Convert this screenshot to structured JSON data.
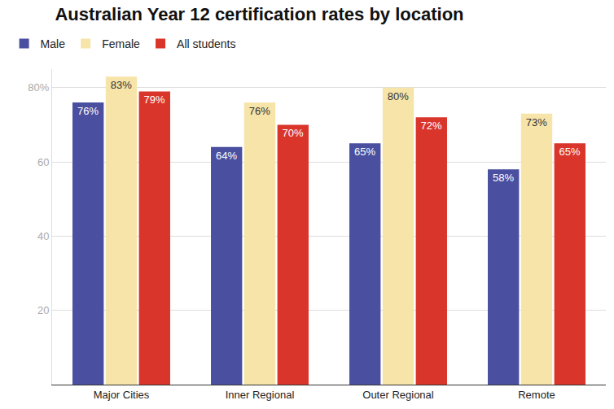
{
  "chart_data": {
    "type": "bar",
    "title": "Australian Year 12 certification rates by location",
    "categories": [
      "Major Cities",
      "Inner Regional",
      "Outer Regional",
      "Remote"
    ],
    "series": [
      {
        "name": "Male",
        "color": "#4a4f9f",
        "values": [
          76,
          64,
          65,
          58
        ],
        "value_labels": [
          "76%",
          "64%",
          "65%",
          "58%"
        ]
      },
      {
        "name": "Female",
        "color": "#f7e4a9",
        "values": [
          83,
          76,
          80,
          73
        ],
        "value_labels": [
          "83%",
          "76%",
          "80%",
          "73%"
        ]
      },
      {
        "name": "All students",
        "color": "#d9352b",
        "values": [
          79,
          70,
          72,
          65
        ],
        "value_labels": [
          "79%",
          "70%",
          "72%",
          "65%"
        ]
      }
    ],
    "ylim": [
      0,
      85
    ],
    "yticks": [
      20,
      40,
      60,
      {
        "value": 80,
        "label": "80%"
      }
    ],
    "grid": true,
    "legend": "top-left",
    "data_labels": true
  }
}
